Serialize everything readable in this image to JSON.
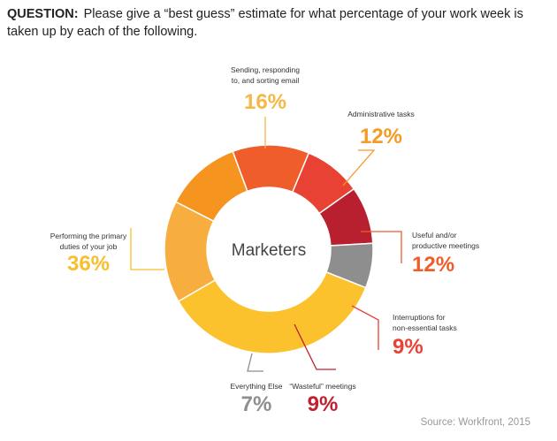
{
  "question": {
    "label": "QUESTION:",
    "text": "Please give a “best guess” estimate for what percentage of your work week is taken up by each of the following."
  },
  "source": "Source: Workfront, 2015",
  "chart_data": {
    "type": "donut",
    "center_label": "Marketers",
    "unit": "%",
    "slices": [
      {
        "label": [
          "Sending, responding",
          "to, and sorting email"
        ],
        "value": 16,
        "display": "16%",
        "color": "#F7AE3E",
        "label_color": "#F7B744"
      },
      {
        "label": [
          "Administrative tasks"
        ],
        "value": 12,
        "display": "12%",
        "color": "#F5941F",
        "label_color": "#F59A25"
      },
      {
        "label": [
          "Useful and/or",
          "productive meetings"
        ],
        "value": 12,
        "display": "12%",
        "color": "#EE5D2A",
        "label_color": "#EE5D2A"
      },
      {
        "label": [
          "Interruptions for",
          "non-essential tasks"
        ],
        "value": 9,
        "display": "9%",
        "color": "#E84234",
        "label_color": "#E84234"
      },
      {
        "label": [
          "“Wasteful” meetings"
        ],
        "value": 9,
        "display": "9%",
        "color": "#B8202F",
        "label_color": "#C0202F"
      },
      {
        "label": [
          "Everything Else"
        ],
        "value": 7,
        "display": "7%",
        "color": "#8E8E8E",
        "label_color": "#8E8E8E"
      },
      {
        "label": [
          "Performing the primary",
          "duties of your job"
        ],
        "value": 36,
        "display": "36%",
        "color": "#FBC22E",
        "label_color": "#F9BE2B"
      }
    ]
  }
}
